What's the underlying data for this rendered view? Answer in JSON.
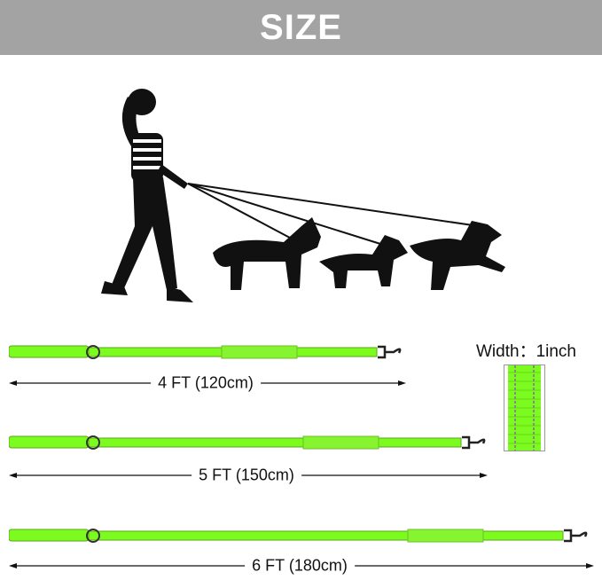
{
  "header": {
    "title": "SIZE",
    "background": "#a3a3a3"
  },
  "leash_color": "#7cfc1e",
  "leashes": [
    {
      "label": "4 FT (120cm)"
    },
    {
      "label": "5 FT (150cm)"
    },
    {
      "label": "6 FT (180cm)"
    }
  ],
  "width_label": "Width：1inch"
}
